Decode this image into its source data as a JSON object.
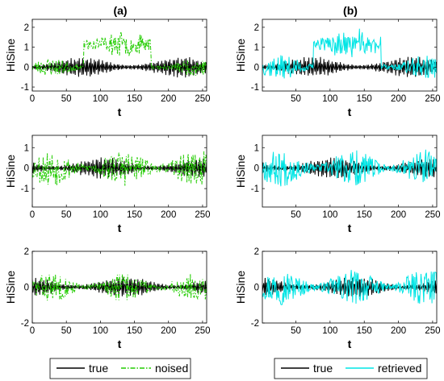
{
  "chart_data": {
    "type": "line",
    "columns": [
      {
        "title": "(a)",
        "legend": [
          {
            "label": "true",
            "color": "#000000",
            "dash": "solid"
          },
          {
            "label": "noised",
            "color": "#22cc00",
            "dash": "dashdot"
          }
        ]
      },
      {
        "title": "(b)",
        "legend": [
          {
            "label": "true",
            "color": "#000000",
            "dash": "solid"
          },
          {
            "label": "retrieved",
            "color": "#00e5e5",
            "dash": "solid"
          }
        ]
      }
    ],
    "panels": [
      {
        "id": "r1-a",
        "row": 0,
        "col": 0,
        "xlabel": "t",
        "ylabel": "HiSine",
        "xlim": [
          0,
          256
        ],
        "ylim": [
          -1.2,
          2.4
        ],
        "xticks": [
          0,
          50,
          100,
          150,
          200,
          250
        ],
        "yticks": [
          -1,
          0,
          1,
          2
        ],
        "series": [
          {
            "name": "true",
            "color": "#000000",
            "dash": "solid",
            "seed": 11,
            "kind": "true",
            "amp": 0.55
          },
          {
            "name": "noised",
            "color": "#22cc00",
            "dash": "dashdot",
            "seed": 23,
            "kind": "noised-offset",
            "amp": 0.45
          }
        ]
      },
      {
        "id": "r1-b",
        "row": 0,
        "col": 1,
        "xlabel": "t",
        "ylabel": "HiSine",
        "xlim": [
          1,
          256
        ],
        "ylim": [
          -1.2,
          2.4
        ],
        "xticks": [
          50,
          100,
          150,
          200,
          250
        ],
        "yticks": [
          -1,
          0,
          1,
          2
        ],
        "series": [
          {
            "name": "true",
            "color": "#000000",
            "dash": "solid",
            "seed": 11,
            "kind": "true",
            "amp": 0.55
          },
          {
            "name": "retrieved",
            "color": "#00e5e5",
            "dash": "solid",
            "seed": 37,
            "kind": "retrieved-offset",
            "amp": 0.6
          }
        ]
      },
      {
        "id": "r2-a",
        "row": 1,
        "col": 0,
        "xlabel": "t",
        "ylabel": "HiSine",
        "xlim": [
          0,
          256
        ],
        "ylim": [
          -1.9,
          1.6
        ],
        "xticks": [
          0,
          50,
          100,
          150,
          200,
          250
        ],
        "yticks": [
          -1,
          0,
          1
        ],
        "series": [
          {
            "name": "true",
            "color": "#000000",
            "dash": "solid",
            "seed": 41,
            "kind": "true",
            "amp": 0.55
          },
          {
            "name": "noised",
            "color": "#22cc00",
            "dash": "dashdot",
            "seed": 53,
            "kind": "noised",
            "amp": 0.9
          }
        ]
      },
      {
        "id": "r2-b",
        "row": 1,
        "col": 1,
        "xlabel": "t",
        "ylabel": "HiSine",
        "xlim": [
          1,
          256
        ],
        "ylim": [
          -1.9,
          1.6
        ],
        "xticks": [
          50,
          100,
          150,
          200,
          250
        ],
        "yticks": [
          -1,
          0,
          1
        ],
        "series": [
          {
            "name": "true",
            "color": "#000000",
            "dash": "solid",
            "seed": 41,
            "kind": "true",
            "amp": 0.55
          },
          {
            "name": "retrieved",
            "color": "#00e5e5",
            "dash": "solid",
            "seed": 67,
            "kind": "retrieved",
            "amp": 0.9
          }
        ]
      },
      {
        "id": "r3-a",
        "row": 2,
        "col": 0,
        "xlabel": "t",
        "ylabel": "HiSine",
        "xlim": [
          0,
          256
        ],
        "ylim": [
          -2,
          2
        ],
        "xticks": [
          0,
          50,
          100,
          150,
          200,
          250
        ],
        "yticks": [
          -2,
          0,
          2
        ],
        "series": [
          {
            "name": "true",
            "color": "#000000",
            "dash": "solid",
            "seed": 71,
            "kind": "true",
            "amp": 0.6
          },
          {
            "name": "noised",
            "color": "#22cc00",
            "dash": "dashdot",
            "seed": 83,
            "kind": "noised",
            "amp": 0.8
          }
        ]
      },
      {
        "id": "r3-b",
        "row": 2,
        "col": 1,
        "xlabel": "t",
        "ylabel": "HiSine",
        "xlim": [
          1,
          256
        ],
        "ylim": [
          -2,
          2
        ],
        "xticks": [
          50,
          100,
          150,
          200,
          250
        ],
        "yticks": [
          -2,
          0,
          2
        ],
        "series": [
          {
            "name": "true",
            "color": "#000000",
            "dash": "solid",
            "seed": 71,
            "kind": "true",
            "amp": 0.6
          },
          {
            "name": "retrieved",
            "color": "#00e5e5",
            "dash": "solid",
            "seed": 97,
            "kind": "retrieved",
            "amp": 1.0
          }
        ]
      }
    ]
  }
}
